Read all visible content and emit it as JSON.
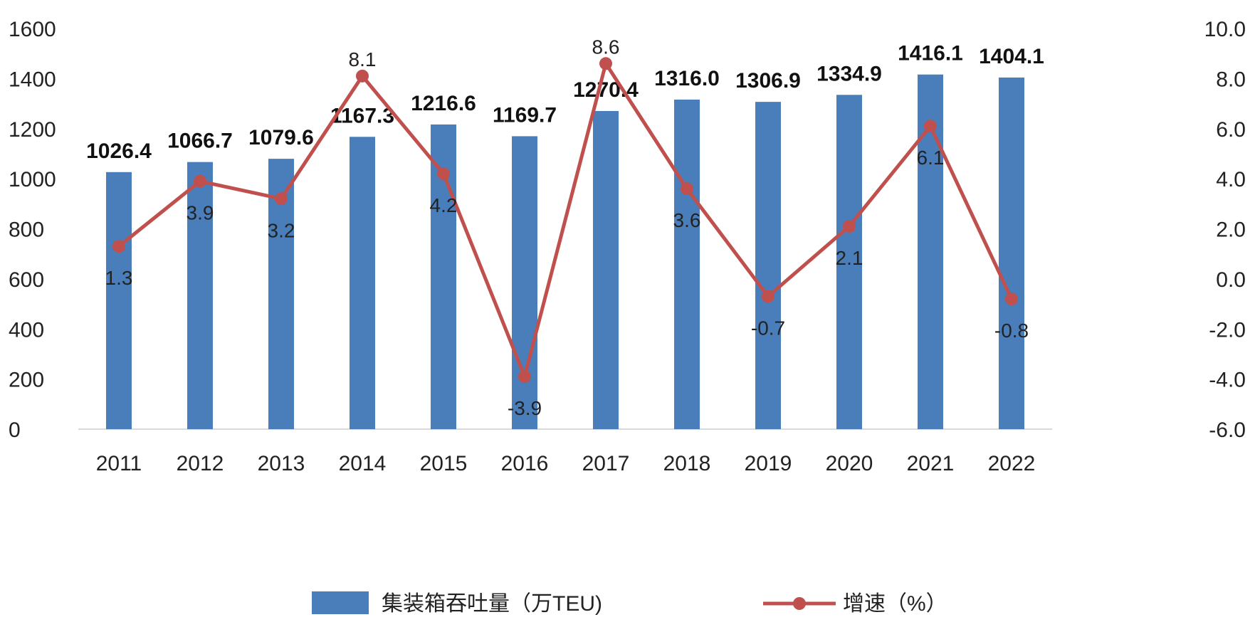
{
  "chart_data": {
    "type": "bar",
    "categories": [
      "2011",
      "2012",
      "2013",
      "2014",
      "2015",
      "2016",
      "2017",
      "2018",
      "2019",
      "2020",
      "2021",
      "2022"
    ],
    "series": [
      {
        "name": "集装箱吞吐量（万TEU)",
        "type": "bar",
        "axis": "left",
        "values": [
          1026.4,
          1066.7,
          1079.6,
          1167.3,
          1216.6,
          1169.7,
          1270.4,
          1316.0,
          1306.9,
          1334.9,
          1416.1,
          1404.1
        ],
        "labels": [
          "1026.4",
          "1066.7",
          "1079.6",
          "1167.3",
          "1216.6",
          "1169.7",
          "1270.4",
          "1316.0",
          "1306.9",
          "1334.9",
          "1416.1",
          "1404.1"
        ],
        "color": "#4a7ebb"
      },
      {
        "name": "增速（%）",
        "type": "line",
        "axis": "right",
        "values": [
          1.3,
          3.9,
          3.2,
          8.1,
          4.2,
          -3.9,
          8.6,
          3.6,
          -0.7,
          2.1,
          6.1,
          -0.8
        ],
        "labels": [
          "1.3",
          "3.9",
          "3.2",
          "8.1",
          "4.2",
          "-3.9",
          "8.6",
          "3.6",
          "-0.7",
          "2.1",
          "6.1",
          "-0.8"
        ],
        "color": "#c0504d"
      }
    ],
    "left_axis": {
      "ylim": [
        0,
        1600
      ],
      "ticks": [
        "0",
        "200",
        "400",
        "600",
        "800",
        "1000",
        "1200",
        "1400",
        "1600"
      ]
    },
    "right_axis": {
      "ylim": [
        -6,
        10
      ],
      "ticks": [
        "-6.0",
        "-4.0",
        "-2.0",
        "0.0",
        "2.0",
        "4.0",
        "6.0",
        "8.0",
        "10.0"
      ]
    },
    "grid": false,
    "legend_position": "bottom"
  }
}
